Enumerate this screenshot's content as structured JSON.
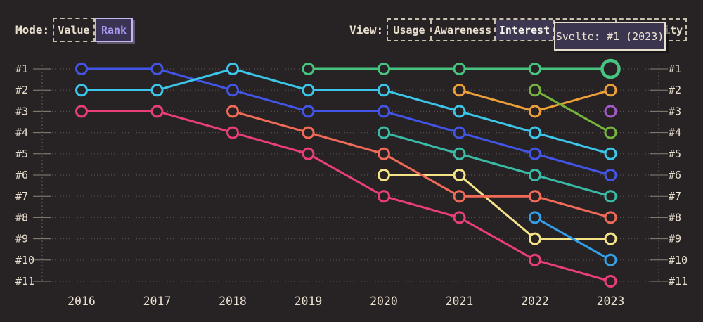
{
  "page": {
    "background": "#272325",
    "text_color": "#eae0cf"
  },
  "mode_control": {
    "label": "Mode:",
    "options": [
      {
        "label": "Value",
        "selected": false
      },
      {
        "label": "Rank",
        "selected": true
      }
    ],
    "selected_color": "#a897ee",
    "selected_border": "#c3b6f2",
    "selected_bg": "#3a3353"
  },
  "view_control": {
    "label": "View:",
    "options": [
      {
        "label": "Usage",
        "selected": false
      },
      {
        "label": "Awareness",
        "selected": false
      },
      {
        "label": "Interest",
        "selected": true
      },
      {
        "label": "",
        "selected": false,
        "note": "segment obscured by tooltip"
      },
      {
        "label": "Positivity",
        "selected": false,
        "note": "partially obscured by tooltip, only 'ty' visible"
      }
    ],
    "selected_bg": "#3d3752"
  },
  "tooltip": {
    "text": "Svelte: #1 (2023)"
  },
  "chart_data": {
    "type": "line",
    "variant": "rank-bump-chart",
    "title": "",
    "xlabel": "",
    "ylabel": "rank (1 = best, shown as #1..#11 on both sides)",
    "x_labels": [
      "2016",
      "2017",
      "2018",
      "2019",
      "2020",
      "2021",
      "2022",
      "2023"
    ],
    "y_tick_labels": [
      "#1",
      "#2",
      "#3",
      "#4",
      "#5",
      "#6",
      "#7",
      "#8",
      "#9",
      "#10",
      "#11"
    ],
    "grid": "dotted horizontal line per rank, dashed vertical axis lines both sides",
    "legend": "none",
    "marker_style": "hollow circle, dark fill, colored ring",
    "series": [
      {
        "id": "blue",
        "name": null,
        "color": "#4355e6",
        "ranks_by_year": [
          1,
          1,
          2,
          3,
          3,
          4,
          5,
          6
        ]
      },
      {
        "id": "cyan",
        "name": null,
        "color": "#3cc6ea",
        "ranks_by_year": [
          2,
          2,
          1,
          2,
          2,
          3,
          4,
          5
        ]
      },
      {
        "id": "pink",
        "name": null,
        "color": "#e93e7a",
        "ranks_by_year": [
          3,
          3,
          4,
          5,
          7,
          8,
          10,
          11
        ]
      },
      {
        "id": "yellow",
        "name": null,
        "color": "#f5e388",
        "ranks_by_year": [
          null,
          null,
          null,
          null,
          6,
          6,
          9,
          9
        ]
      },
      {
        "id": "salmon",
        "name": null,
        "color": "#f26b58",
        "ranks_by_year": [
          null,
          null,
          3,
          4,
          5,
          7,
          7,
          8
        ]
      },
      {
        "id": "svelte-green",
        "name": "Svelte",
        "color": "#48c481",
        "ranks_by_year": [
          null,
          null,
          null,
          1,
          1,
          1,
          1,
          1
        ]
      },
      {
        "id": "teal",
        "name": null,
        "color": "#39bba6",
        "ranks_by_year": [
          null,
          null,
          null,
          null,
          4,
          5,
          6,
          7
        ]
      },
      {
        "id": "orange",
        "name": null,
        "color": "#eba03a",
        "ranks_by_year": [
          null,
          null,
          null,
          null,
          null,
          2,
          3,
          2
        ]
      },
      {
        "id": "apple-green",
        "name": null,
        "color": "#76b43e",
        "ranks_by_year": [
          null,
          null,
          null,
          null,
          null,
          null,
          2,
          4
        ]
      },
      {
        "id": "sky-blue",
        "name": null,
        "color": "#33a0e8",
        "ranks_by_year": [
          null,
          null,
          null,
          null,
          null,
          null,
          8,
          10
        ]
      },
      {
        "id": "purple",
        "name": null,
        "color": "#a45ac8",
        "ranks_by_year": [
          null,
          null,
          null,
          null,
          null,
          null,
          null,
          3
        ]
      }
    ],
    "highlight": {
      "series_id": "svelte-green",
      "x_label": "2023",
      "rank": 1,
      "tooltip_text": "Svelte: #1 (2023)"
    }
  }
}
